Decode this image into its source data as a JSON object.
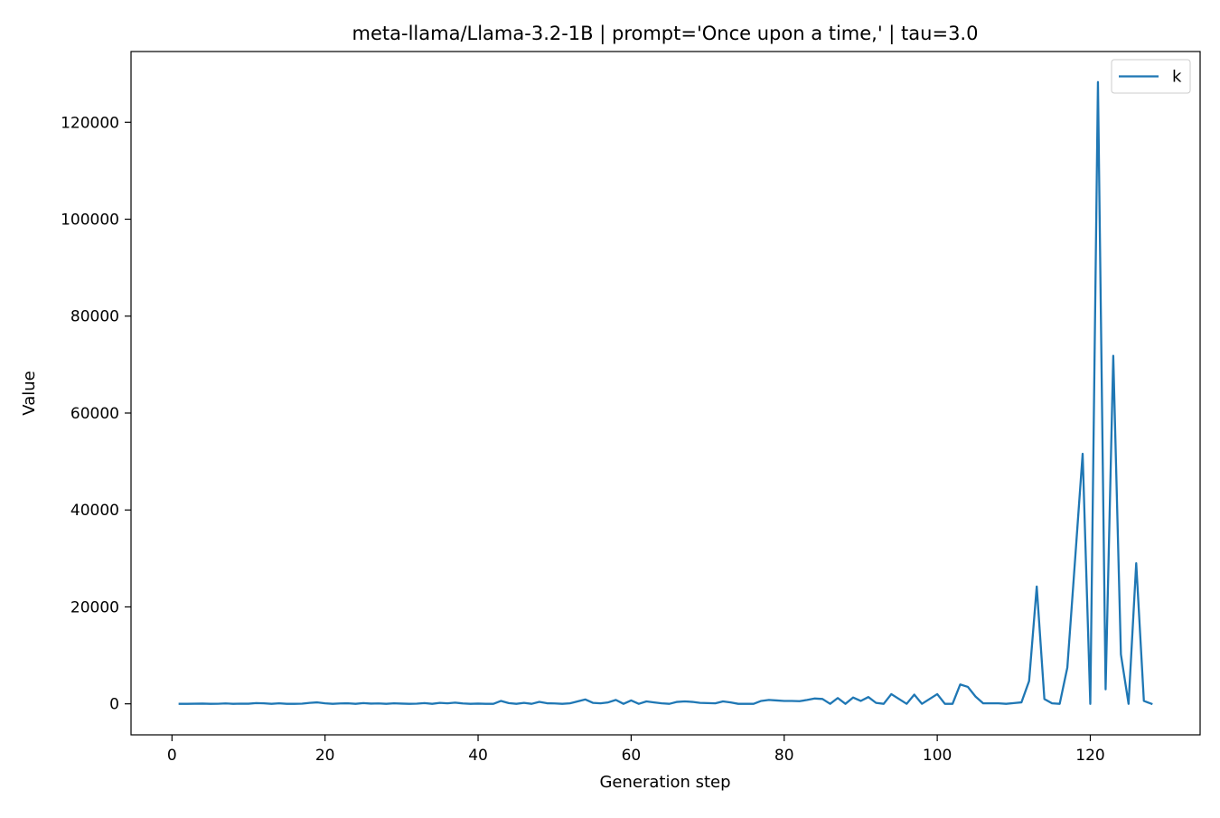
{
  "chart_data": {
    "type": "line",
    "title": "meta-llama/Llama-3.2-1B | prompt='Once upon a time,' | tau=3.0",
    "xlabel": "Generation step",
    "ylabel": "Value",
    "xlim": [
      -5.35,
      134.35
    ],
    "ylim": [
      -6400,
      134600
    ],
    "xticks": [
      0,
      20,
      40,
      60,
      80,
      100,
      120
    ],
    "yticks": [
      0,
      20000,
      40000,
      60000,
      80000,
      100000,
      120000
    ],
    "grid": false,
    "legend_position": "top-right",
    "series": [
      {
        "name": "k",
        "color": "#1f77b4",
        "x": [
          1,
          2,
          3,
          4,
          5,
          6,
          7,
          8,
          9,
          10,
          11,
          12,
          13,
          14,
          15,
          16,
          17,
          18,
          19,
          20,
          21,
          22,
          23,
          24,
          25,
          26,
          27,
          28,
          29,
          30,
          31,
          32,
          33,
          34,
          35,
          36,
          37,
          38,
          39,
          40,
          41,
          42,
          43,
          44,
          45,
          46,
          47,
          48,
          49,
          50,
          51,
          52,
          53,
          54,
          55,
          56,
          57,
          58,
          59,
          60,
          61,
          62,
          63,
          64,
          65,
          66,
          67,
          68,
          69,
          70,
          71,
          72,
          73,
          74,
          75,
          76,
          77,
          78,
          79,
          80,
          81,
          82,
          83,
          84,
          85,
          86,
          87,
          88,
          89,
          90,
          91,
          92,
          93,
          94,
          95,
          96,
          97,
          98,
          99,
          100,
          101,
          102,
          103,
          104,
          105,
          106,
          107,
          108,
          109,
          110,
          111,
          112,
          113,
          114,
          115,
          116,
          117,
          118,
          119,
          120,
          121,
          122,
          123,
          124,
          125,
          126,
          127,
          128
        ],
        "values": [
          0,
          0,
          20,
          50,
          0,
          10,
          80,
          0,
          40,
          20,
          150,
          100,
          0,
          100,
          0,
          0,
          30,
          200,
          300,
          100,
          0,
          80,
          100,
          0,
          150,
          50,
          80,
          0,
          100,
          50,
          0,
          30,
          150,
          0,
          200,
          100,
          250,
          80,
          0,
          50,
          0,
          0,
          600,
          150,
          0,
          200,
          0,
          400,
          120,
          80,
          0,
          100,
          500,
          900,
          200,
          100,
          300,
          800,
          0,
          700,
          0,
          500,
          300,
          100,
          0,
          400,
          500,
          400,
          200,
          150,
          100,
          500,
          300,
          0,
          0,
          0,
          600,
          800,
          700,
          600,
          600,
          550,
          800,
          1100,
          1000,
          0,
          1200,
          0,
          1300,
          600,
          1400,
          200,
          0,
          2000,
          1000,
          0,
          1900,
          0,
          1000,
          2000,
          0,
          0,
          4000,
          3500,
          1500,
          100,
          100,
          100,
          0,
          150,
          300,
          4700,
          24200,
          1000,
          100,
          0,
          7500,
          29500,
          51600,
          0,
          128300,
          3000,
          71800,
          10200,
          0,
          29000,
          600,
          0
        ]
      }
    ]
  }
}
